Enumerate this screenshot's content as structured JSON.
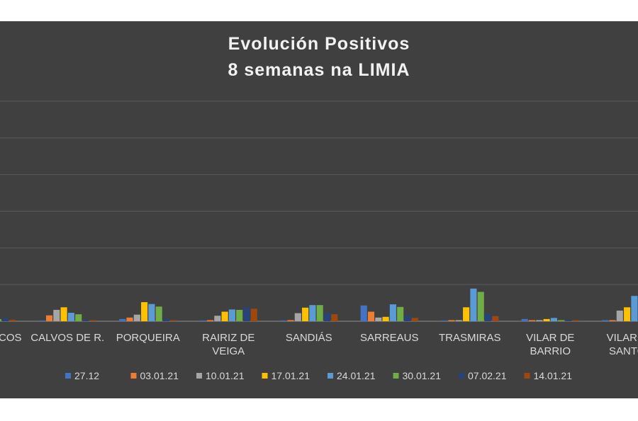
{
  "chart_data": {
    "type": "bar",
    "title_line1": "Evolución Positivos",
    "title_line2": "8 semanas na LIMIA",
    "legend_position": "bottom",
    "grid": true,
    "ylim": [
      0,
      60
    ],
    "categories": [
      [
        "OS BLANCOS"
      ],
      [
        "CALVOS DE R."
      ],
      [
        "PORQUEIRA"
      ],
      [
        "RAIRIZ DE",
        "VEIGA"
      ],
      [
        "SANDIÁS"
      ],
      [
        "SARREAUS"
      ],
      [
        "TRASMIRAS"
      ],
      [
        "VILAR DE",
        "BARRIO"
      ],
      [
        "VILAR DE",
        "SANTOS"
      ]
    ],
    "series": [
      {
        "name": "27.12",
        "color": "#4472c4",
        "values": [
          0.3,
          0.2,
          0.6,
          0.2,
          0.2,
          4.3,
          0.2,
          0.6,
          0.3
        ]
      },
      {
        "name": "03.01.21",
        "color": "#ed7d31",
        "values": [
          0.5,
          1.6,
          1.0,
          0.3,
          0.3,
          2.6,
          0.3,
          0.3,
          0.3
        ]
      },
      {
        "name": "10.01.21",
        "color": "#a5a5a5",
        "values": [
          0.6,
          3.1,
          1.8,
          1.5,
          2.2,
          1.0,
          0.3,
          0.3,
          2.9
        ]
      },
      {
        "name": "17.01.21",
        "color": "#ffc000",
        "values": [
          1.0,
          3.8,
          5.2,
          2.6,
          3.7,
          1.2,
          3.8,
          0.6,
          3.8
        ]
      },
      {
        "name": "24.01.21",
        "color": "#5b9bd5",
        "values": [
          0.8,
          2.3,
          4.7,
          3.2,
          4.4,
          4.6,
          8.9,
          0.9,
          6.9
        ]
      },
      {
        "name": "30.01.21",
        "color": "#70ad47",
        "values": [
          0.6,
          1.9,
          4.0,
          3.1,
          4.4,
          3.9,
          8.0,
          0.3,
          4.0
        ]
      },
      {
        "name": "07.02.21",
        "color": "#264478",
        "values": [
          0.8,
          0.3,
          0.6,
          3.8,
          2.3,
          1.6,
          2.0,
          0.3,
          1.0
        ]
      },
      {
        "name": "14.01.21",
        "color": "#9e480e",
        "values": [
          0.4,
          0.3,
          0.3,
          3.4,
          1.9,
          0.9,
          1.4,
          0.3,
          0.6
        ]
      }
    ]
  }
}
